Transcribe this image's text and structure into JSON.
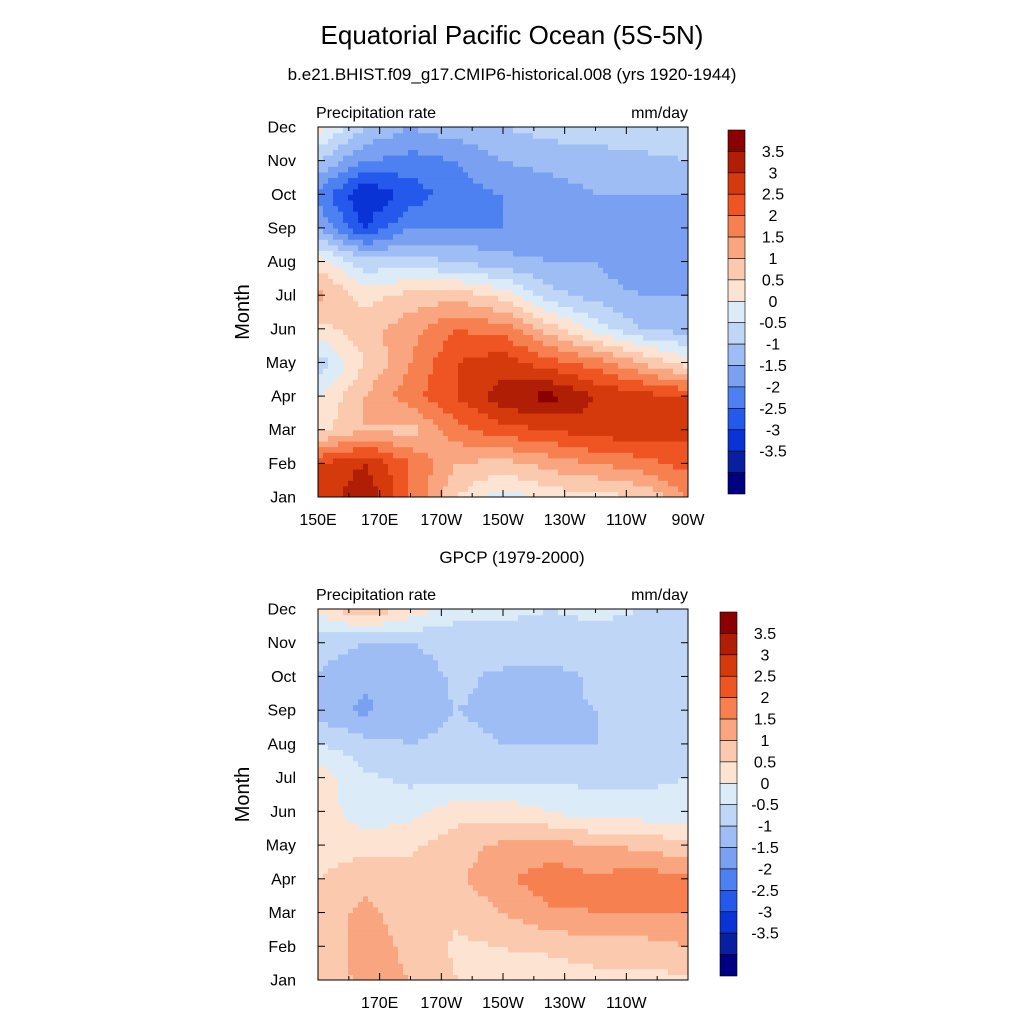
{
  "figure": {
    "title": "Equatorial Pacific Ocean (5S-5N)",
    "subtitle": "b.e21.BHIST.f09_g17.CMIP6-historical.008 (yrs 1920-1944)"
  },
  "chart_data": [
    {
      "type": "heatmap",
      "panel_title": "",
      "left_label": "Precipitation rate",
      "right_label": "mm/day",
      "ylabel": "Month",
      "x_ticks": [
        "150E",
        "170E",
        "170W",
        "150W",
        "130W",
        "110W",
        "90W"
      ],
      "x_range": [
        150,
        270
      ],
      "y_ticks": [
        "Jan",
        "Feb",
        "Mar",
        "Apr",
        "May",
        "Jun",
        "Jul",
        "Aug",
        "Sep",
        "Oct",
        "Nov",
        "Dec"
      ],
      "colorbar_labels": [
        "3.5",
        "3",
        "2.5",
        "2",
        "1.5",
        "1",
        "0.5",
        "0",
        "-0.5",
        "-1",
        "-1.5",
        "-2",
        "-2.5",
        "-3",
        "-3.5"
      ],
      "colorbar_colors": [
        "#8b0000",
        "#b01e06",
        "#d43a0c",
        "#ef5423",
        "#f6804f",
        "#f9a57f",
        "#fbc9ae",
        "#fde4d2",
        "#dcebf8",
        "#bfd6f7",
        "#9ebdf5",
        "#7aa0f1",
        "#4d80f0",
        "#2459ec",
        "#0a33d6",
        "#06209f",
        "#000080"
      ],
      "grid_x": [
        "150E",
        "165E",
        "180",
        "165W",
        "150W",
        "135W",
        "120W",
        "105W",
        "90W"
      ],
      "grid_y": [
        "Jan",
        "Feb",
        "Mar",
        "Apr",
        "May",
        "Jun",
        "Jul",
        "Aug",
        "Sep",
        "Oct",
        "Nov",
        "Dec"
      ],
      "values": [
        [
          2.5,
          3.5,
          2.0,
          0.5,
          -0.3,
          0.2,
          0.3,
          0.5,
          1.5
        ],
        [
          2.5,
          3.0,
          2.0,
          1.0,
          0.8,
          1.2,
          1.5,
          1.8,
          2.2
        ],
        [
          0.3,
          1.0,
          0.8,
          1.8,
          2.3,
          2.5,
          2.8,
          2.8,
          2.7
        ],
        [
          0.0,
          1.0,
          1.8,
          2.5,
          3.3,
          3.7,
          3.0,
          2.7,
          2.5
        ],
        [
          -0.8,
          0.5,
          1.5,
          2.5,
          2.8,
          2.2,
          1.8,
          1.0,
          0.2
        ],
        [
          0.3,
          0.8,
          1.3,
          2.0,
          1.8,
          0.8,
          -0.2,
          -1.0,
          -1.2
        ],
        [
          1.2,
          0.3,
          0.7,
          0.8,
          0.3,
          -0.8,
          -1.2,
          -1.5,
          -1.5
        ],
        [
          0.3,
          -0.8,
          -0.8,
          -1.0,
          -1.3,
          -1.5,
          -1.5,
          -2.0,
          -2.0
        ],
        [
          -1.5,
          -3.0,
          -2.0,
          -2.0,
          -2.0,
          -1.8,
          -1.5,
          -2.0,
          -1.8
        ],
        [
          -2.2,
          -3.5,
          -2.8,
          -2.2,
          -2.0,
          -1.8,
          -1.5,
          -1.5,
          -1.5
        ],
        [
          -1.0,
          -2.0,
          -2.2,
          -2.0,
          -1.5,
          -1.3,
          -1.2,
          -1.2,
          -1.0
        ],
        [
          0.2,
          -1.0,
          -1.5,
          -1.2,
          -1.0,
          -0.8,
          -0.8,
          -0.5,
          -0.5
        ]
      ]
    },
    {
      "type": "heatmap",
      "panel_title": "GPCP (1979-2000)",
      "left_label": "Precipitation rate",
      "right_label": "mm/day",
      "ylabel": "Month",
      "x_ticks": [
        "170E",
        "170W",
        "150W",
        "130W",
        "110W"
      ],
      "x_range": [
        150,
        270
      ],
      "y_ticks": [
        "Jan",
        "Feb",
        "Mar",
        "Apr",
        "May",
        "Jun",
        "Jul",
        "Aug",
        "Sep",
        "Oct",
        "Nov",
        "Dec"
      ],
      "colorbar_labels": [
        "3.5",
        "3",
        "2.5",
        "2",
        "1.5",
        "1",
        "0.5",
        "0",
        "-0.5",
        "-1",
        "-1.5",
        "-2",
        "-2.5",
        "-3",
        "-3.5"
      ],
      "colorbar_colors": [
        "#8b0000",
        "#b01e06",
        "#d43a0c",
        "#ef5423",
        "#f6804f",
        "#f9a57f",
        "#fbc9ae",
        "#fde4d2",
        "#dcebf8",
        "#bfd6f7",
        "#9ebdf5",
        "#7aa0f1",
        "#4d80f0",
        "#2459ec",
        "#0a33d6",
        "#06209f",
        "#000080"
      ],
      "grid_x": [
        "150E",
        "165E",
        "180",
        "165W",
        "150W",
        "135W",
        "120W",
        "105W",
        "90W"
      ],
      "grid_y": [
        "Jan",
        "Feb",
        "Mar",
        "Apr",
        "May",
        "Jun",
        "Jul",
        "Aug",
        "Sep",
        "Oct",
        "Nov",
        "Dec"
      ],
      "values": [
        [
          0.5,
          1.2,
          1.0,
          0.5,
          0.4,
          0.2,
          0.3,
          0.3,
          0.4
        ],
        [
          0.7,
          1.2,
          0.9,
          0.4,
          0.5,
          0.6,
          0.8,
          0.8,
          1.0
        ],
        [
          0.8,
          1.1,
          0.8,
          0.6,
          1.0,
          1.4,
          1.5,
          1.5,
          1.5
        ],
        [
          0.5,
          0.9,
          0.7,
          0.9,
          1.4,
          1.8,
          1.6,
          1.8,
          1.6
        ],
        [
          0.2,
          0.3,
          0.4,
          0.8,
          1.1,
          1.2,
          1.0,
          0.9,
          0.6
        ],
        [
          0.3,
          -0.3,
          -0.2,
          0.3,
          0.3,
          0.0,
          -0.3,
          -0.3,
          -0.3
        ],
        [
          0.3,
          -0.4,
          -0.6,
          -0.6,
          -0.6,
          -0.6,
          -0.6,
          -0.6,
          -0.5
        ],
        [
          -0.5,
          -0.8,
          -1.0,
          -0.9,
          -1.0,
          -1.0,
          -1.0,
          -0.8,
          -0.8
        ],
        [
          -1.2,
          -1.6,
          -1.2,
          -1.0,
          -1.1,
          -1.1,
          -1.0,
          -0.9,
          -1.0
        ],
        [
          -1.0,
          -1.4,
          -1.3,
          -0.9,
          -1.1,
          -1.2,
          -0.9,
          -1.0,
          -1.0
        ],
        [
          -0.8,
          -1.0,
          -1.0,
          -0.8,
          -0.7,
          -0.7,
          -0.7,
          -0.7,
          -0.8
        ],
        [
          0.1,
          1.0,
          0.3,
          -0.3,
          -0.4,
          -0.5,
          -0.4,
          -0.5,
          -0.5
        ]
      ]
    }
  ]
}
